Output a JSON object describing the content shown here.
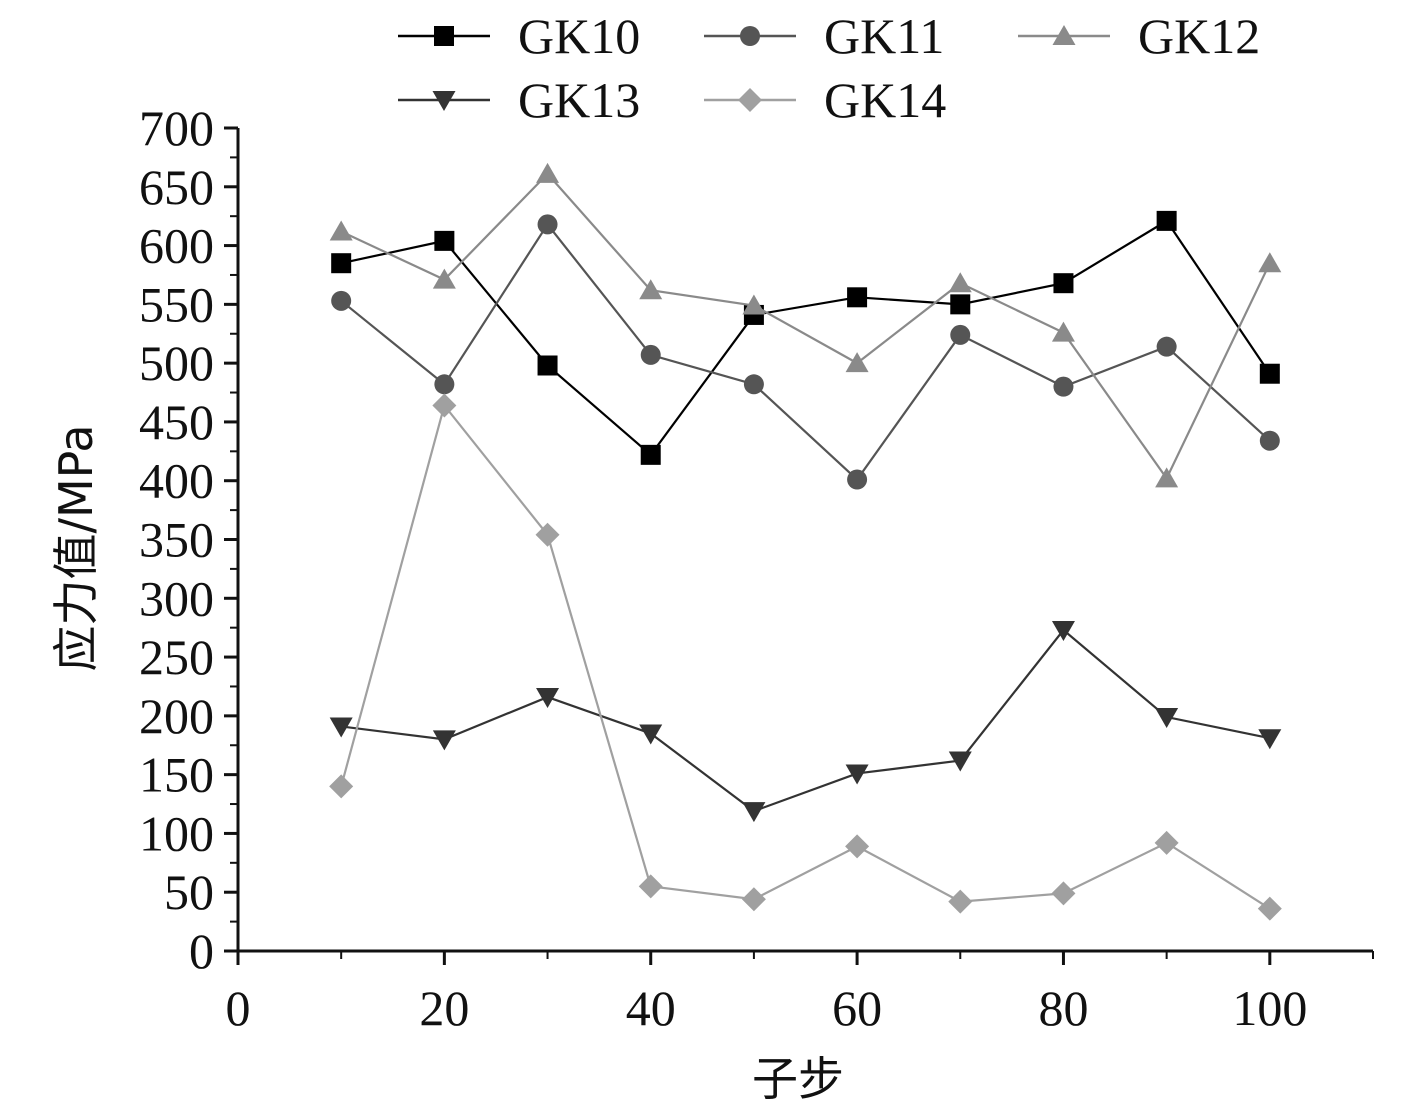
{
  "chart_data": {
    "type": "line",
    "title": "",
    "xlabel": "子步",
    "ylabel": "应力值/MPa",
    "xlim": [
      0,
      110
    ],
    "ylim": [
      0,
      700
    ],
    "xticks": [
      0,
      20,
      40,
      60,
      80,
      100
    ],
    "yticks": [
      0,
      50,
      100,
      150,
      200,
      250,
      300,
      350,
      400,
      450,
      500,
      550,
      600,
      650,
      700
    ],
    "x": [
      10,
      20,
      30,
      40,
      50,
      60,
      70,
      80,
      90,
      100
    ],
    "legend_position": "top",
    "series": [
      {
        "name": "GK10",
        "marker": "square",
        "color": "#000000",
        "values": [
          585,
          604,
          498,
          422,
          541,
          556,
          550,
          568,
          621,
          491
        ]
      },
      {
        "name": "GK11",
        "marker": "circle",
        "color": "#555555",
        "values": [
          553,
          482,
          618,
          507,
          482,
          401,
          524,
          480,
          514,
          434
        ]
      },
      {
        "name": "GK12",
        "marker": "triangle-up",
        "color": "#8a8a8a",
        "values": [
          612,
          571,
          661,
          562,
          549,
          500,
          568,
          526,
          402,
          585
        ]
      },
      {
        "name": "GK13",
        "marker": "triangle-down",
        "color": "#333333",
        "values": [
          191,
          180,
          216,
          185,
          119,
          151,
          162,
          273,
          199,
          181
        ]
      },
      {
        "name": "GK14",
        "marker": "diamond",
        "color": "#a0a0a0",
        "values": [
          140,
          464,
          354,
          55,
          44,
          89,
          42,
          49,
          92,
          36
        ]
      }
    ]
  }
}
